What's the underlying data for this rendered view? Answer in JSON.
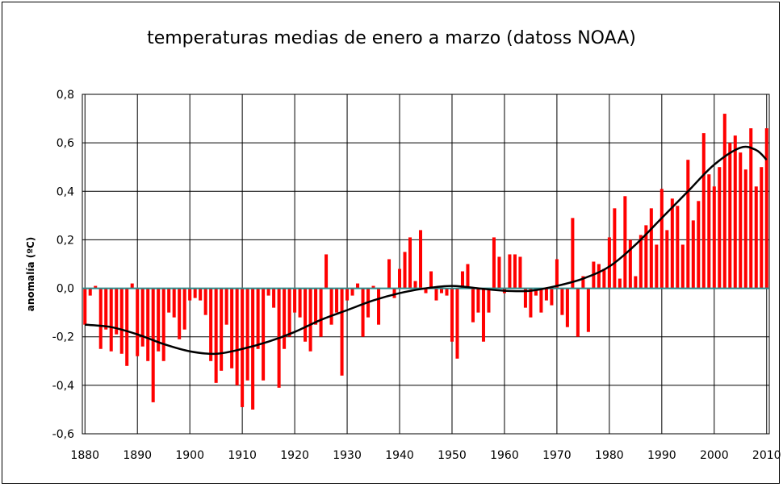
{
  "chart_data": {
    "type": "bar",
    "title": "temperaturas medias de enero a marzo (datoss NOAA)",
    "ylabel": "anomalía (ºC)",
    "xlabel": "",
    "xlim": [
      1879.5,
      2010.5
    ],
    "ylim": [
      -0.6,
      0.8
    ],
    "yticks": [
      -0.6,
      -0.4,
      -0.2,
      0.0,
      0.2,
      0.4,
      0.6,
      0.8
    ],
    "ytick_labels": [
      "-0,6",
      "-0,4",
      "-0,2",
      "0,0",
      "0,2",
      "0,4",
      "0,6",
      "0,8"
    ],
    "xticks": [
      1880,
      1890,
      1900,
      1910,
      1920,
      1930,
      1940,
      1950,
      1960,
      1970,
      1980,
      1990,
      2000,
      2010
    ],
    "xtick_labels": [
      "1880",
      "1890",
      "1900",
      "1910",
      "1920",
      "1930",
      "1940",
      "1950",
      "1960",
      "1970",
      "1980",
      "1990",
      "2000",
      "2010"
    ],
    "grid": true,
    "legend": "none",
    "colors": {
      "bars": "#ff0000",
      "trend": "#000000",
      "zero_line": "#2e8b8b",
      "grid": "#000000"
    },
    "series": [
      {
        "kind": "bar",
        "x_start": 1880,
        "values": [
          -0.15,
          -0.03,
          0.01,
          -0.25,
          -0.17,
          -0.26,
          -0.19,
          -0.27,
          -0.32,
          0.02,
          -0.28,
          -0.24,
          -0.3,
          -0.47,
          -0.26,
          -0.3,
          -0.1,
          -0.12,
          -0.21,
          -0.17,
          -0.05,
          -0.04,
          -0.05,
          -0.11,
          -0.3,
          -0.39,
          -0.34,
          -0.15,
          -0.33,
          -0.4,
          -0.49,
          -0.38,
          -0.5,
          -0.25,
          -0.38,
          -0.03,
          -0.08,
          -0.41,
          -0.25,
          -0.2,
          -0.1,
          -0.12,
          -0.22,
          -0.26,
          -0.15,
          -0.2,
          0.14,
          -0.15,
          -0.1,
          -0.36,
          -0.05,
          -0.03,
          0.02,
          -0.2,
          -0.12,
          0.01,
          -0.15,
          0.0,
          0.12,
          -0.04,
          0.08,
          0.15,
          0.21,
          0.03,
          0.24,
          -0.02,
          0.07,
          -0.05,
          -0.02,
          -0.03,
          -0.22,
          -0.29,
          0.07,
          0.1,
          -0.14,
          -0.1,
          -0.22,
          -0.1,
          0.21,
          0.13,
          -0.02,
          0.14,
          0.14,
          0.13,
          -0.08,
          -0.12,
          -0.03,
          -0.1,
          -0.05,
          -0.07,
          0.12,
          -0.11,
          -0.16,
          0.29,
          -0.2,
          0.05,
          -0.18,
          0.11,
          0.1,
          0.08,
          0.21,
          0.33,
          0.04,
          0.38,
          0.2,
          0.05,
          0.22,
          0.26,
          0.33,
          0.18,
          0.41,
          0.24,
          0.37,
          0.34,
          0.18,
          0.53,
          0.28,
          0.36,
          0.64,
          0.47,
          0.42,
          0.5,
          0.72,
          0.6,
          0.63,
          0.56,
          0.49,
          0.66,
          0.42,
          0.5,
          0.66
        ]
      },
      {
        "kind": "line",
        "name": "",
        "x": [
          1880,
          1885,
          1890,
          1895,
          1900,
          1905,
          1910,
          1915,
          1920,
          1925,
          1930,
          1935,
          1940,
          1945,
          1950,
          1955,
          1960,
          1965,
          1970,
          1975,
          1980,
          1985,
          1990,
          1995,
          2000,
          2005,
          2008,
          2010
        ],
        "values": [
          -0.15,
          -0.16,
          -0.19,
          -0.23,
          -0.26,
          -0.27,
          -0.25,
          -0.22,
          -0.18,
          -0.13,
          -0.09,
          -0.05,
          -0.02,
          0.0,
          0.01,
          0.0,
          -0.01,
          -0.01,
          0.01,
          0.04,
          0.09,
          0.18,
          0.29,
          0.4,
          0.51,
          0.58,
          0.57,
          0.53
        ]
      }
    ]
  }
}
